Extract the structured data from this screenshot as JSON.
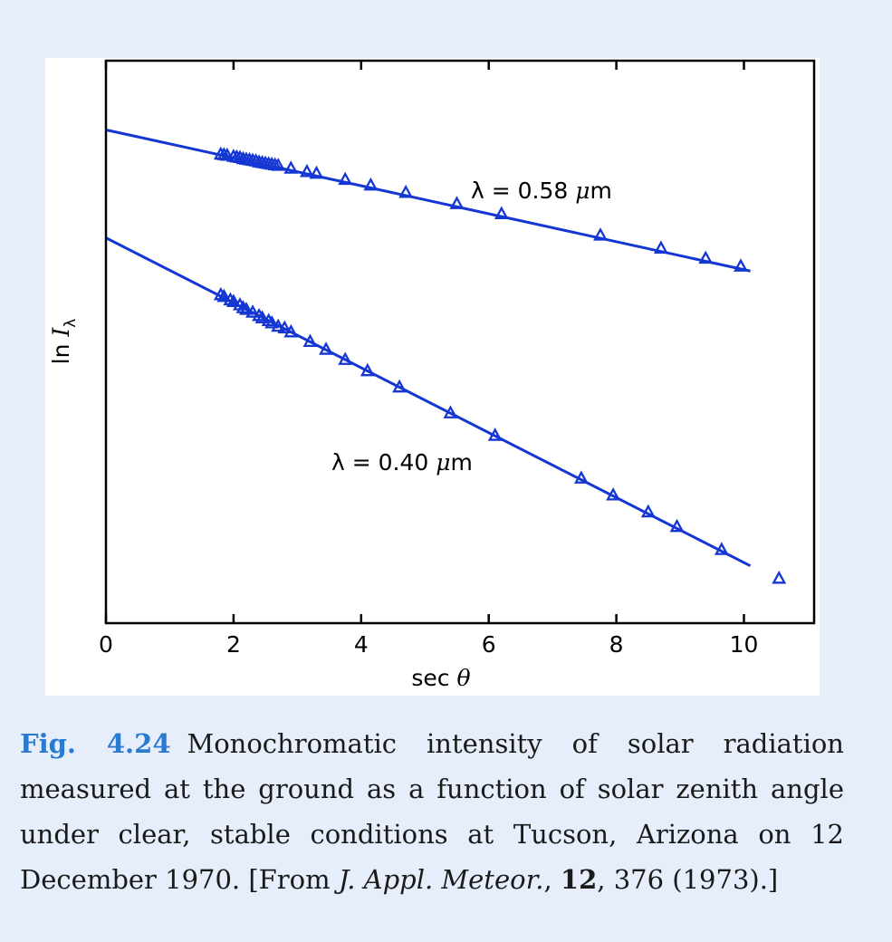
{
  "chart_data": {
    "type": "scatter",
    "xlabel": {
      "main": "sec ",
      "var": "θ"
    },
    "ylabel": {
      "main": "ln ",
      "var": "I",
      "sub": "λ"
    },
    "xlim": [
      0,
      11.1
    ],
    "ylim": [
      0,
      1
    ],
    "xticks": [
      0,
      2,
      4,
      6,
      8,
      10
    ],
    "yticks": [],
    "grid": false,
    "legend": "none",
    "colors": {
      "series": "#1436d2",
      "axes": "#000000",
      "panel": "#ffffff",
      "background": "#e6eefb"
    },
    "marker": "open-triangle",
    "series": [
      {
        "label": {
          "lambda": "λ",
          "eq": " = ",
          "value": "0.58 ",
          "mu": "μ",
          "unit": "m"
        },
        "fit_line": {
          "x": [
            0,
            10.1
          ],
          "y": [
            0.877,
            0.626
          ]
        },
        "x": [
          1.8,
          1.85,
          1.9,
          2.0,
          2.05,
          2.1,
          2.15,
          2.2,
          2.25,
          2.3,
          2.35,
          2.4,
          2.45,
          2.5,
          2.55,
          2.6,
          2.65,
          2.7,
          2.9,
          3.15,
          3.3,
          3.75,
          4.15,
          4.7,
          5.5,
          6.2,
          7.75,
          8.7,
          9.4,
          9.95
        ],
        "y": [
          0.834,
          0.833,
          0.832,
          0.83,
          0.829,
          0.828,
          0.826,
          0.825,
          0.824,
          0.823,
          0.822,
          0.82,
          0.819,
          0.818,
          0.817,
          0.816,
          0.815,
          0.814,
          0.809,
          0.803,
          0.8,
          0.789,
          0.779,
          0.766,
          0.746,
          0.728,
          0.69,
          0.667,
          0.649,
          0.635
        ]
      },
      {
        "label": {
          "lambda": "λ",
          "eq": " = ",
          "value": "0.40 ",
          "mu": "μ",
          "unit": "m"
        },
        "fit_line": {
          "x": [
            0,
            10.1
          ],
          "y": [
            0.685,
            0.102
          ]
        },
        "x": [
          1.8,
          1.85,
          1.95,
          2.0,
          2.1,
          2.15,
          2.2,
          2.3,
          2.4,
          2.45,
          2.55,
          2.6,
          2.7,
          2.8,
          2.9,
          3.2,
          3.45,
          3.75,
          4.1,
          4.6,
          5.4,
          6.1,
          7.45,
          7.95,
          8.5,
          8.95,
          9.65,
          10.55
        ],
        "y": [
          0.584,
          0.581,
          0.575,
          0.572,
          0.566,
          0.561,
          0.558,
          0.553,
          0.547,
          0.543,
          0.538,
          0.534,
          0.528,
          0.525,
          0.518,
          0.501,
          0.487,
          0.469,
          0.449,
          0.42,
          0.374,
          0.334,
          0.258,
          0.228,
          0.198,
          0.172,
          0.131,
          0.08
        ]
      }
    ]
  },
  "caption": {
    "fig_label": "Fig. 4.24",
    "text_1": "Monochromatic intensity of solar radiation measured at the ground as a function of solar zenith angle under clear, stable conditions at Tucson, Arizona on 12 December 1970. [From ",
    "journal": "J. Appl. Meteor.",
    "text_2": ", ",
    "volume": "12",
    "text_3": ", 376 (1973).]"
  }
}
